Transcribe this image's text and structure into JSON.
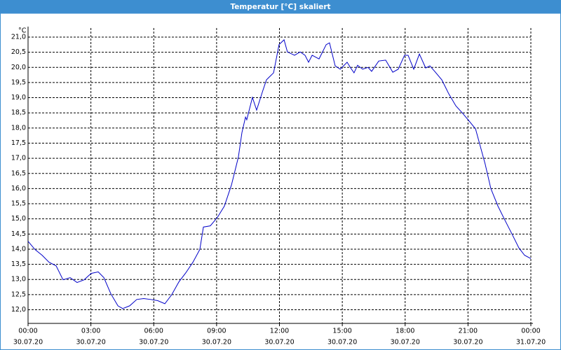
{
  "chart_data": {
    "type": "line",
    "title": "Temperatur [°C] skaliert",
    "y_unit": "°C",
    "x": [
      0,
      0.33,
      0.67,
      1.0,
      1.34,
      1.67,
      2.01,
      2.34,
      2.68,
      3.01,
      3.35,
      3.62,
      3.95,
      4.29,
      4.52,
      4.85,
      5.19,
      5.52,
      5.86,
      6.19,
      6.53,
      6.86,
      7.2,
      7.53,
      7.87,
      8.2,
      8.37,
      8.7,
      9.04,
      9.37,
      9.71,
      10.04,
      10.21,
      10.38,
      10.44,
      10.71,
      10.91,
      11.21,
      11.38,
      11.72,
      11.98,
      12.22,
      12.38,
      12.72,
      12.99,
      13.22,
      13.39,
      13.56,
      13.89,
      14.23,
      14.39,
      14.66,
      14.9,
      15.23,
      15.4,
      15.56,
      15.73,
      15.97,
      16.23,
      16.4,
      16.74,
      17.07,
      17.41,
      17.67,
      17.97,
      18.14,
      18.41,
      18.68,
      18.98,
      19.18,
      19.41,
      19.75,
      20.08,
      20.42,
      20.75,
      21.09,
      21.36,
      21.59,
      21.82,
      22.09,
      22.43,
      22.76,
      23.1,
      23.43,
      23.7,
      24.0
    ],
    "series": [
      {
        "name": "Temperatur",
        "color": "#0000c8",
        "values": [
          14.26,
          13.99,
          13.8,
          13.57,
          13.45,
          12.99,
          13.06,
          12.9,
          12.99,
          13.2,
          13.25,
          13.06,
          12.53,
          12.13,
          12.04,
          12.13,
          12.34,
          12.37,
          12.34,
          12.3,
          12.2,
          12.5,
          12.92,
          13.22,
          13.57,
          13.99,
          14.73,
          14.77,
          15.05,
          15.42,
          16.12,
          17.04,
          17.85,
          18.36,
          18.27,
          19.01,
          18.59,
          19.24,
          19.59,
          19.82,
          20.75,
          20.91,
          20.51,
          20.4,
          20.51,
          20.4,
          20.17,
          20.4,
          20.28,
          20.75,
          20.81,
          20.05,
          19.94,
          20.17,
          19.98,
          19.82,
          20.07,
          19.94,
          20.0,
          19.87,
          20.21,
          20.24,
          19.84,
          19.94,
          20.4,
          20.4,
          19.94,
          20.44,
          19.98,
          20.05,
          19.87,
          19.59,
          19.13,
          18.73,
          18.48,
          18.2,
          17.97,
          17.39,
          16.81,
          16.0,
          15.42,
          14.96,
          14.5,
          14.04,
          13.8,
          13.69
        ]
      }
    ],
    "xlim": [
      0,
      24
    ],
    "xticks": [
      {
        "value": 0,
        "label": "00:00",
        "date": "30.07.20"
      },
      {
        "value": 3,
        "label": "03:00",
        "date": "30.07.20"
      },
      {
        "value": 6,
        "label": "06:00",
        "date": "30.07.20"
      },
      {
        "value": 9,
        "label": "09:00",
        "date": "30.07.20"
      },
      {
        "value": 12,
        "label": "12:00",
        "date": "30.07.20"
      },
      {
        "value": 15,
        "label": "15:00",
        "date": "30.07.20"
      },
      {
        "value": 18,
        "label": "18:00",
        "date": "30.07.20"
      },
      {
        "value": 21,
        "label": "21:00",
        "date": "30.07.20"
      },
      {
        "value": 24,
        "label": "00:00",
        "date": "31.07.20"
      }
    ],
    "ylim": [
      11.55,
      21.3
    ],
    "yticks": [
      {
        "value": 12,
        "label": "12,0"
      },
      {
        "value": 12.5,
        "label": "12,5"
      },
      {
        "value": 13,
        "label": "13,0"
      },
      {
        "value": 13.5,
        "label": "13,5"
      },
      {
        "value": 14,
        "label": "14,0"
      },
      {
        "value": 14.5,
        "label": "14,5"
      },
      {
        "value": 15,
        "label": "15,0"
      },
      {
        "value": 15.5,
        "label": "15,5"
      },
      {
        "value": 16,
        "label": "16,0"
      },
      {
        "value": 16.5,
        "label": "16,5"
      },
      {
        "value": 17,
        "label": "17,0"
      },
      {
        "value": 17.5,
        "label": "17,5"
      },
      {
        "value": 18,
        "label": "18,0"
      },
      {
        "value": 18.5,
        "label": "18,5"
      },
      {
        "value": 19,
        "label": "19,0"
      },
      {
        "value": 19.5,
        "label": "19,5"
      },
      {
        "value": 20,
        "label": "20,0"
      },
      {
        "value": 20.5,
        "label": "20,5"
      },
      {
        "value": 21,
        "label": "21,0"
      }
    ],
    "grid": true
  }
}
